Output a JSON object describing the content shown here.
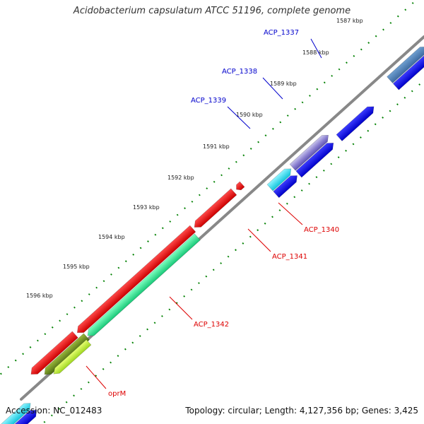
{
  "title": "Acidobacterium capsulatum ATCC 51196, complete genome",
  "footer": {
    "accession": "Accession: NC_012483",
    "summary": "Topology: circular; Length: 4,127,356 bp; Genes: 3,425"
  },
  "colors": {
    "forward_label": "#0000cc",
    "reverse_label": "#dd0000",
    "backbone": "#888888",
    "tick": "#008000"
  },
  "ticks": [
    {
      "label": "1587 kbp"
    },
    {
      "label": "1588 kbp"
    },
    {
      "label": "1589 kbp"
    },
    {
      "label": "1590 kbp"
    },
    {
      "label": "1591 kbp"
    },
    {
      "label": "1592 kbp"
    },
    {
      "label": "1593 kbp"
    },
    {
      "label": "1594 kbp"
    },
    {
      "label": "1595 kbp"
    },
    {
      "label": "1596 kbp"
    }
  ],
  "genes": [
    {
      "label": "ACP_1337",
      "strand": "forward",
      "color": "#0000cc"
    },
    {
      "label": "ACP_1338",
      "strand": "forward",
      "color": "#0000cc"
    },
    {
      "label": "ACP_1339",
      "strand": "forward",
      "color": "#0000cc"
    },
    {
      "label": "ACP_1340",
      "strand": "reverse",
      "color": "#dd0000"
    },
    {
      "label": "ACP_1341",
      "strand": "reverse",
      "color": "#dd0000"
    },
    {
      "label": "ACP_1342",
      "strand": "reverse",
      "color": "#dd0000"
    },
    {
      "label": "oprM",
      "strand": "reverse",
      "color": "#dd0000"
    }
  ]
}
